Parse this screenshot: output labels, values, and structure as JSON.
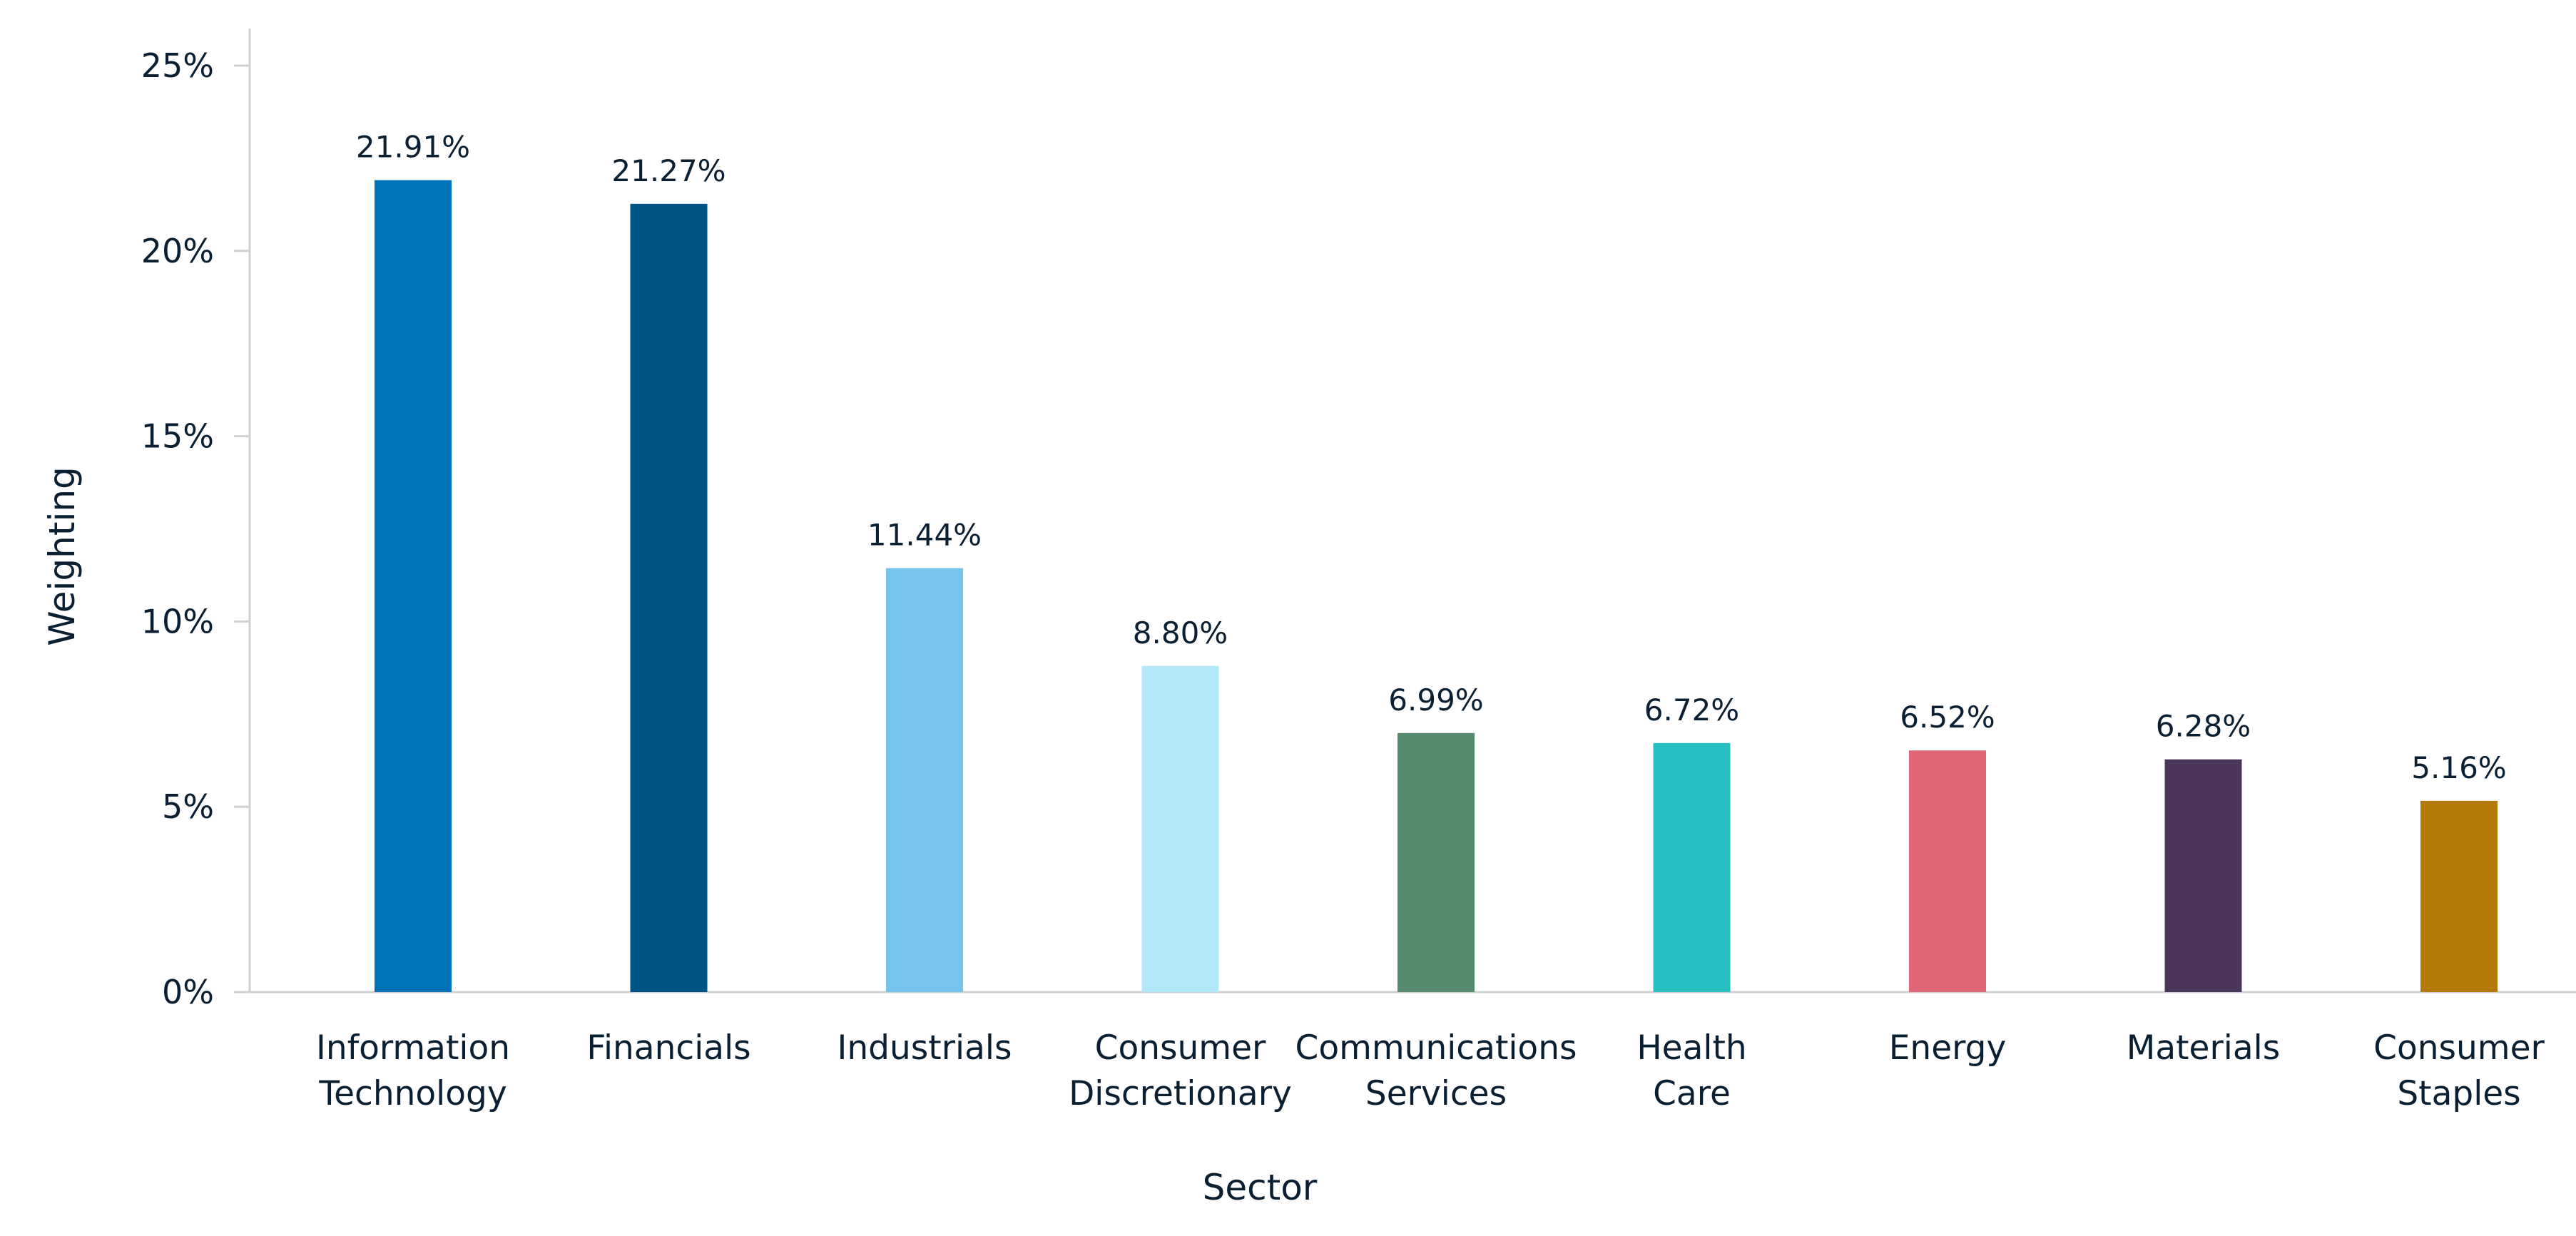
{
  "chart_data": {
    "type": "bar",
    "title": "",
    "xlabel": "Sector",
    "ylabel": "Weighting",
    "ylim": [
      0,
      25
    ],
    "yticks": [
      0,
      5,
      10,
      15,
      20,
      25
    ],
    "ytick_labels": [
      "0%",
      "5%",
      "10%",
      "15%",
      "20%",
      "25%"
    ],
    "grid": false,
    "legend": "none",
    "categories": [
      [
        "Information",
        "Technology"
      ],
      [
        "Financials"
      ],
      [
        "Industrials"
      ],
      [
        "Consumer",
        "Discretionary"
      ],
      [
        "Communications",
        "Services"
      ],
      [
        "Health",
        "Care"
      ],
      [
        "Energy"
      ],
      [
        "Materials"
      ],
      [
        "Consumer",
        "Staples"
      ]
    ],
    "values": [
      21.91,
      21.27,
      11.44,
      8.8,
      6.99,
      6.72,
      6.52,
      6.28,
      5.16
    ],
    "value_labels": [
      "21.91%",
      "21.27%",
      "11.44%",
      "8.80%",
      "6.99%",
      "6.72%",
      "6.52%",
      "6.28%",
      "5.16%"
    ],
    "colors": [
      "#0072bc",
      "#005587",
      "#74c4ec",
      "#b3e8fb",
      "#558c6e",
      "#28bfc2",
      "#e06677",
      "#4c355b",
      "#b47a05"
    ]
  },
  "style": {
    "axis_color": "#d0d0d0",
    "text_color": "#0b1f33"
  }
}
